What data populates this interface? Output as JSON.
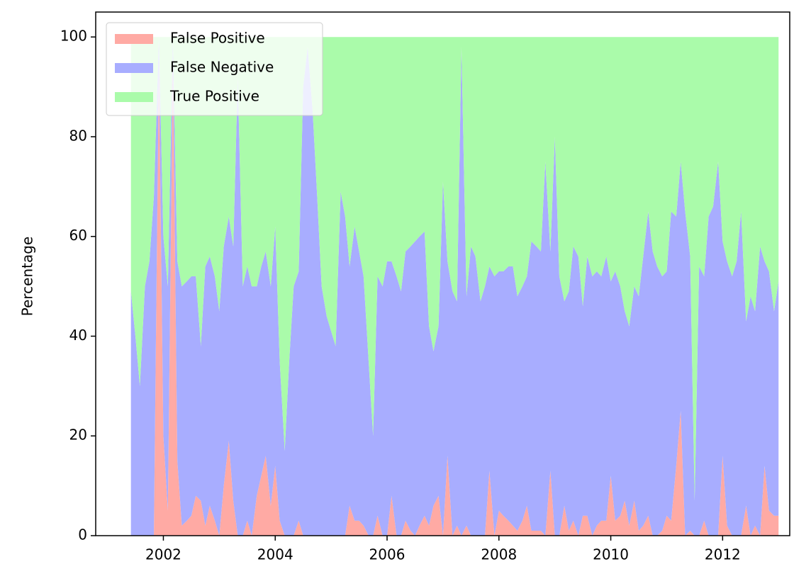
{
  "chart_data": {
    "type": "stacked_area",
    "y_label": "Percentage",
    "x": [
      2001.42,
      2001.5,
      2001.58,
      2001.67,
      2001.75,
      2001.83,
      2001.92,
      2002.0,
      2002.08,
      2002.17,
      2002.25,
      2002.33,
      2002.42,
      2002.5,
      2002.58,
      2002.67,
      2002.75,
      2002.83,
      2002.92,
      2003.0,
      2003.08,
      2003.17,
      2003.25,
      2003.33,
      2003.42,
      2003.5,
      2003.58,
      2003.67,
      2003.75,
      2003.83,
      2003.92,
      2004.0,
      2004.08,
      2004.17,
      2004.25,
      2004.33,
      2004.42,
      2004.5,
      2004.58,
      2004.67,
      2004.75,
      2004.83,
      2004.92,
      2005.0,
      2005.08,
      2005.17,
      2005.25,
      2005.33,
      2005.42,
      2005.5,
      2005.58,
      2005.67,
      2005.75,
      2005.83,
      2005.92,
      2006.0,
      2006.08,
      2006.17,
      2006.25,
      2006.33,
      2006.42,
      2006.5,
      2006.58,
      2006.67,
      2006.75,
      2006.83,
      2006.92,
      2007.0,
      2007.08,
      2007.17,
      2007.25,
      2007.33,
      2007.42,
      2007.5,
      2007.58,
      2007.67,
      2007.75,
      2007.83,
      2007.92,
      2008.0,
      2008.08,
      2008.17,
      2008.25,
      2008.33,
      2008.42,
      2008.5,
      2008.58,
      2008.67,
      2008.75,
      2008.83,
      2008.92,
      2009.0,
      2009.08,
      2009.17,
      2009.25,
      2009.33,
      2009.42,
      2009.5,
      2009.58,
      2009.67,
      2009.75,
      2009.83,
      2009.92,
      2010.0,
      2010.08,
      2010.17,
      2010.25,
      2010.33,
      2010.42,
      2010.5,
      2010.58,
      2010.67,
      2010.75,
      2010.83,
      2010.92,
      2011.0,
      2011.08,
      2011.17,
      2011.25,
      2011.33,
      2011.42,
      2011.5,
      2011.58,
      2011.67,
      2011.75,
      2011.83,
      2011.92,
      2012.0,
      2012.08,
      2012.17,
      2012.25,
      2012.33,
      2012.42,
      2012.5,
      2012.58,
      2012.67,
      2012.75,
      2012.83,
      2012.92,
      2013.0
    ],
    "series": [
      {
        "name": "False Positive",
        "color": "#ffaaa4",
        "values": [
          0,
          0,
          0,
          0,
          0,
          0,
          95,
          20,
          5,
          95,
          15,
          2,
          3,
          4,
          8,
          7,
          2,
          6,
          3,
          0,
          10,
          19,
          7,
          0,
          0,
          3,
          0,
          8,
          12,
          16,
          6,
          14,
          3,
          0,
          0,
          0,
          3,
          0,
          0,
          0,
          0,
          0,
          0,
          0,
          0,
          0,
          0,
          6,
          3,
          3,
          2,
          0,
          0,
          4,
          0,
          0,
          8,
          0,
          0,
          3,
          1,
          0,
          2,
          4,
          2,
          6,
          8,
          0,
          16,
          0,
          2,
          0,
          2,
          0,
          0,
          0,
          0,
          13,
          0,
          5,
          4,
          3,
          2,
          1,
          3,
          6,
          1,
          1,
          1,
          0,
          13,
          0,
          0,
          6,
          1,
          3,
          0,
          4,
          4,
          0,
          2,
          3,
          3,
          12,
          3,
          4,
          7,
          2,
          7,
          1,
          2,
          4,
          0,
          0,
          1,
          4,
          3,
          14,
          25,
          0,
          1,
          0,
          0,
          3,
          0,
          0,
          0,
          16,
          2,
          0,
          0,
          0,
          6,
          0,
          2,
          0,
          14,
          5,
          4,
          4
        ]
      },
      {
        "name": "False Negative",
        "color": "#a8adff",
        "values": [
          49,
          40,
          30,
          50,
          55,
          68,
          5,
          40,
          45,
          5,
          40,
          48,
          48,
          48,
          44,
          31,
          52,
          50,
          49,
          45,
          48,
          45,
          51,
          92,
          50,
          51,
          50,
          42,
          42,
          41,
          44,
          48,
          32,
          17,
          35,
          50,
          50,
          90,
          98,
          85,
          68,
          50,
          44,
          41,
          38,
          69,
          64,
          48,
          59,
          54,
          50,
          35,
          20,
          48,
          50,
          55,
          47,
          52,
          49,
          54,
          57,
          59,
          58,
          57,
          40,
          31,
          34,
          71,
          39,
          49,
          45,
          98,
          46,
          58,
          56,
          47,
          50,
          41,
          52,
          48,
          49,
          51,
          52,
          47,
          47,
          46,
          58,
          57,
          56,
          75,
          44,
          80,
          52,
          41,
          48,
          55,
          56,
          42,
          52,
          52,
          51,
          49,
          53,
          39,
          50,
          46,
          38,
          40,
          43,
          47,
          54,
          61,
          57,
          54,
          51,
          49,
          62,
          50,
          50,
          65,
          55,
          7,
          54,
          49,
          64,
          66,
          75,
          43,
          53,
          52,
          55,
          65,
          37,
          48,
          43,
          58,
          41,
          48,
          41,
          47
        ]
      },
      {
        "name": "True Positive",
        "color": "#aafbaa",
        "values": [
          51,
          60,
          70,
          50,
          45,
          32,
          0,
          40,
          50,
          0,
          45,
          50,
          49,
          48,
          48,
          62,
          46,
          44,
          48,
          55,
          42,
          36,
          42,
          8,
          50,
          46,
          50,
          50,
          46,
          43,
          50,
          38,
          65,
          83,
          65,
          50,
          47,
          10,
          2,
          15,
          32,
          50,
          56,
          59,
          62,
          31,
          36,
          46,
          38,
          43,
          48,
          65,
          80,
          48,
          50,
          45,
          45,
          48,
          51,
          43,
          42,
          41,
          40,
          39,
          58,
          63,
          58,
          29,
          45,
          51,
          53,
          2,
          52,
          42,
          44,
          53,
          50,
          46,
          48,
          47,
          47,
          46,
          46,
          52,
          50,
          48,
          41,
          42,
          43,
          25,
          43,
          20,
          48,
          53,
          51,
          42,
          44,
          54,
          44,
          48,
          47,
          48,
          44,
          49,
          47,
          50,
          55,
          58,
          50,
          52,
          44,
          35,
          43,
          46,
          48,
          47,
          35,
          36,
          25,
          35,
          44,
          93,
          46,
          48,
          36,
          34,
          25,
          41,
          45,
          48,
          45,
          35,
          57,
          52,
          55,
          42,
          45,
          47,
          55,
          49
        ]
      }
    ],
    "xlim": [
      2000.79,
      2013.2
    ],
    "xticks": [
      2002,
      2004,
      2006,
      2008,
      2010,
      2012
    ],
    "ylim": [
      0,
      105
    ],
    "yticks": [
      0,
      20,
      40,
      60,
      80,
      100
    ],
    "legend": "upper left"
  }
}
